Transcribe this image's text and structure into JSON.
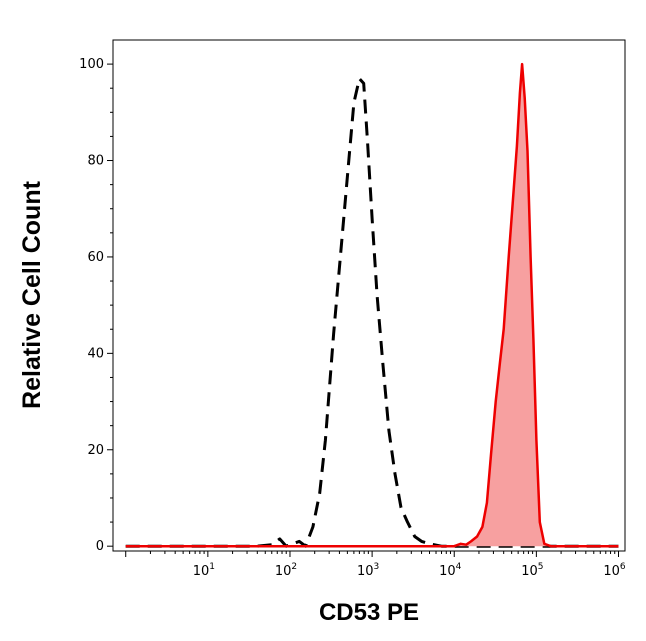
{
  "chart_data": {
    "type": "area",
    "xlabel": "CD53 PE",
    "ylabel": "Relative Cell Count",
    "x_scale": "log",
    "xlim": [
      0.7,
      1200000
    ],
    "ylim": [
      -1,
      105
    ],
    "x_ticks": [
      {
        "value": 10,
        "base": "10",
        "exp": "1"
      },
      {
        "value": 100,
        "base": "10",
        "exp": "2"
      },
      {
        "value": 1000,
        "base": "10",
        "exp": "3"
      },
      {
        "value": 10000,
        "base": "10",
        "exp": "4"
      },
      {
        "value": 100000,
        "base": "10",
        "exp": "5"
      },
      {
        "value": 1000000,
        "base": "10",
        "exp": "6"
      }
    ],
    "y_ticks": [
      0,
      20,
      40,
      60,
      80,
      100
    ],
    "series": [
      {
        "style": "dashed",
        "color": "#000000",
        "fill": "none",
        "points": [
          [
            1,
            0
          ],
          [
            40,
            0
          ],
          [
            60,
            0.3
          ],
          [
            75,
            1.5
          ],
          [
            90,
            0
          ],
          [
            130,
            1
          ],
          [
            155,
            0
          ],
          [
            190,
            4
          ],
          [
            230,
            11
          ],
          [
            270,
            22
          ],
          [
            340,
            44
          ],
          [
            420,
            62
          ],
          [
            520,
            80
          ],
          [
            600,
            92
          ],
          [
            700,
            97
          ],
          [
            790,
            96
          ],
          [
            880,
            84
          ],
          [
            1000,
            68
          ],
          [
            1150,
            52
          ],
          [
            1350,
            38
          ],
          [
            1600,
            24
          ],
          [
            1900,
            15
          ],
          [
            2250,
            8
          ],
          [
            2700,
            5
          ],
          [
            3300,
            2
          ],
          [
            4000,
            1
          ],
          [
            5000,
            0.5
          ],
          [
            7000,
            0
          ],
          [
            1000000,
            0
          ]
        ]
      },
      {
        "style": "solid",
        "color": "#ee0000",
        "fill": "#f7a0a0",
        "points": [
          [
            1,
            0
          ],
          [
            10000,
            0
          ],
          [
            12000,
            0.5
          ],
          [
            14000,
            0.3
          ],
          [
            16000,
            1
          ],
          [
            19000,
            2
          ],
          [
            22000,
            4
          ],
          [
            25000,
            9
          ],
          [
            28000,
            19
          ],
          [
            32000,
            30
          ],
          [
            36000,
            38
          ],
          [
            40000,
            45
          ],
          [
            46000,
            60
          ],
          [
            52000,
            72
          ],
          [
            58000,
            83
          ],
          [
            63000,
            94
          ],
          [
            67000,
            100
          ],
          [
            72000,
            93
          ],
          [
            78000,
            82
          ],
          [
            85000,
            60
          ],
          [
            92000,
            43
          ],
          [
            100000,
            22
          ],
          [
            110000,
            5
          ],
          [
            125000,
            0.5
          ],
          [
            150000,
            0
          ],
          [
            1000000,
            0
          ]
        ]
      }
    ]
  }
}
